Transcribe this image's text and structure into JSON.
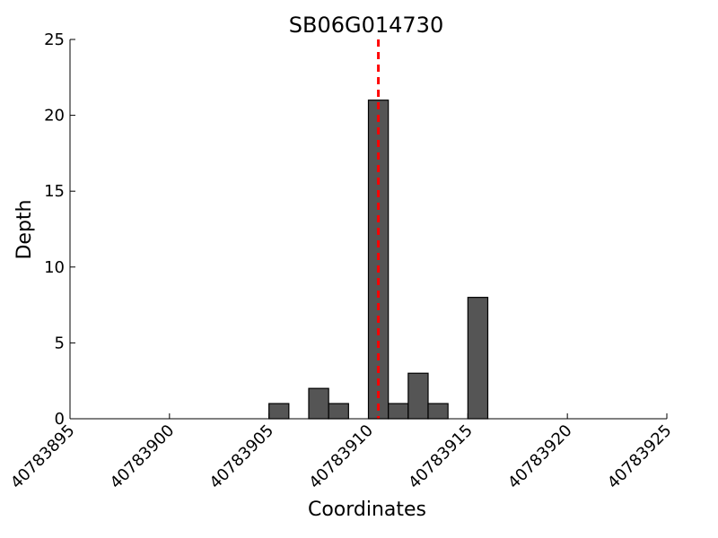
{
  "chart_data": {
    "type": "bar",
    "title": "SB06G014730",
    "xlabel": "Coordinates",
    "ylabel": "Depth",
    "xlim": [
      40783895,
      40783925
    ],
    "ylim": [
      0,
      25
    ],
    "x_ticks": [
      "40783895",
      "40783900",
      "40783905",
      "40783910",
      "40783915",
      "40783920",
      "40783925"
    ],
    "y_ticks": [
      "0",
      "5",
      "10",
      "15",
      "20",
      "25"
    ],
    "bin_width": 1,
    "bars": [
      {
        "x": 40783905,
        "value": 1
      },
      {
        "x": 40783907,
        "value": 2
      },
      {
        "x": 40783908,
        "value": 1
      },
      {
        "x": 40783910,
        "value": 21
      },
      {
        "x": 40783911,
        "value": 1
      },
      {
        "x": 40783912,
        "value": 3
      },
      {
        "x": 40783913,
        "value": 1
      },
      {
        "x": 40783915,
        "value": 8
      }
    ],
    "reference_line": {
      "x": 40783910.5,
      "style": "dashed"
    },
    "bar_color": "#555555",
    "reference_color": "#ff0000",
    "grid": false
  }
}
